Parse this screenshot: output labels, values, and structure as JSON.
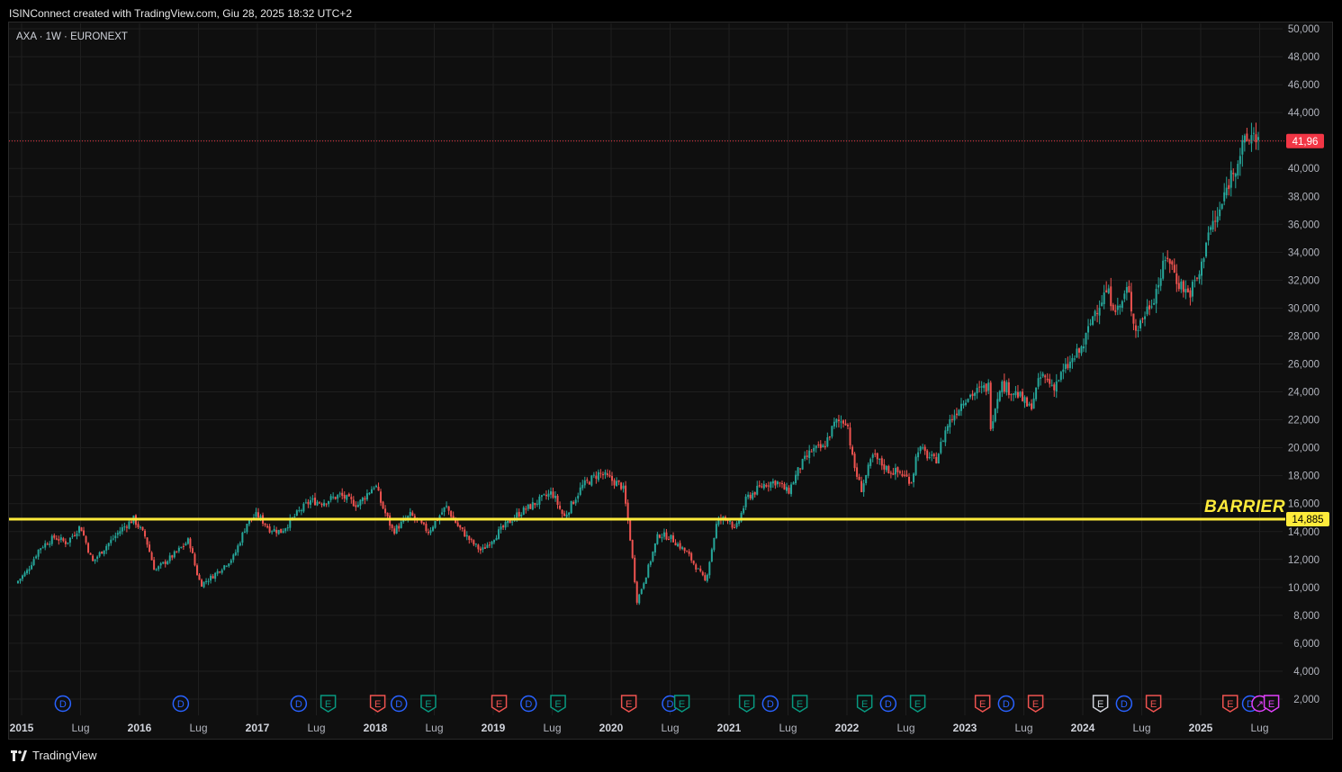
{
  "header": {
    "title": "ISINConnect created with TradingView.com, Giu 28, 2025 18:32 UTC+2"
  },
  "symbol": {
    "label": "AXA · 1W · EURONEXT"
  },
  "footer": {
    "brand": "TradingView"
  },
  "chart_data": {
    "type": "candlestick",
    "symbol": "AXA",
    "interval": "1W",
    "exchange": "EURONEXT",
    "ylim": [
      0,
      50
    ],
    "y_ticks": [
      "50,000",
      "48,000",
      "46,000",
      "44,000",
      "42,000",
      "40,000",
      "38,000",
      "36,000",
      "34,000",
      "32,000",
      "30,000",
      "28,000",
      "26,000",
      "24,000",
      "22,000",
      "20,000",
      "18,000",
      "16,000",
      "14,000",
      "12,000",
      "10,000",
      "8,000",
      "6,000",
      "4,000",
      "2,000"
    ],
    "y_tick_values": [
      50,
      48,
      46,
      44,
      42,
      40,
      38,
      36,
      34,
      32,
      30,
      28,
      26,
      24,
      22,
      20,
      18,
      16,
      14,
      12,
      10,
      8,
      6,
      4,
      2
    ],
    "x_ticks": [
      {
        "label": "2015",
        "t": 2015.0
      },
      {
        "label": "Lug",
        "t": 2015.5
      },
      {
        "label": "2016",
        "t": 2016.0
      },
      {
        "label": "Lug",
        "t": 2016.5
      },
      {
        "label": "2017",
        "t": 2017.0
      },
      {
        "label": "Lug",
        "t": 2017.5
      },
      {
        "label": "2018",
        "t": 2018.0
      },
      {
        "label": "Lug",
        "t": 2018.5
      },
      {
        "label": "2019",
        "t": 2019.0
      },
      {
        "label": "Lug",
        "t": 2019.5
      },
      {
        "label": "2020",
        "t": 2020.0
      },
      {
        "label": "Lug",
        "t": 2020.5
      },
      {
        "label": "2021",
        "t": 2021.0
      },
      {
        "label": "Lug",
        "t": 2021.5
      },
      {
        "label": "2022",
        "t": 2022.0
      },
      {
        "label": "Lug",
        "t": 2022.5
      },
      {
        "label": "2023",
        "t": 2023.0
      },
      {
        "label": "Lug",
        "t": 2023.5
      },
      {
        "label": "2024",
        "t": 2024.0
      },
      {
        "label": "Lug",
        "t": 2024.5
      },
      {
        "label": "2025",
        "t": 2025.0
      },
      {
        "label": "Lug",
        "t": 2025.5
      }
    ],
    "price_path": [
      [
        2014.95,
        10.3
      ],
      [
        2015.05,
        11.2
      ],
      [
        2015.15,
        12.8
      ],
      [
        2015.28,
        13.6
      ],
      [
        2015.38,
        13.2
      ],
      [
        2015.5,
        14.4
      ],
      [
        2015.6,
        11.8
      ],
      [
        2015.7,
        12.8
      ],
      [
        2015.85,
        14.2
      ],
      [
        2015.95,
        14.9
      ],
      [
        2016.05,
        13.6
      ],
      [
        2016.13,
        11.2
      ],
      [
        2016.3,
        12.4
      ],
      [
        2016.42,
        13.4
      ],
      [
        2016.48,
        11.2
      ],
      [
        2016.52,
        10.2
      ],
      [
        2016.62,
        10.8
      ],
      [
        2016.8,
        12.2
      ],
      [
        2016.92,
        14.8
      ],
      [
        2017.0,
        15.2
      ],
      [
        2017.1,
        14.2
      ],
      [
        2017.2,
        14.0
      ],
      [
        2017.35,
        15.4
      ],
      [
        2017.45,
        16.2
      ],
      [
        2017.55,
        16.1
      ],
      [
        2017.7,
        16.6
      ],
      [
        2017.85,
        15.9
      ],
      [
        2018.0,
        17.4
      ],
      [
        2018.05,
        16.0
      ],
      [
        2018.15,
        14.0
      ],
      [
        2018.3,
        15.2
      ],
      [
        2018.45,
        14.0
      ],
      [
        2018.6,
        15.8
      ],
      [
        2018.7,
        14.4
      ],
      [
        2018.82,
        13.2
      ],
      [
        2018.9,
        12.6
      ],
      [
        2019.05,
        14.0
      ],
      [
        2019.2,
        15.2
      ],
      [
        2019.35,
        16.0
      ],
      [
        2019.5,
        16.8
      ],
      [
        2019.6,
        15.0
      ],
      [
        2019.75,
        17.2
      ],
      [
        2019.9,
        18.2
      ],
      [
        2020.1,
        17.2
      ],
      [
        2020.15,
        14.4
      ],
      [
        2020.22,
        9.0
      ],
      [
        2020.3,
        11.0
      ],
      [
        2020.4,
        13.8
      ],
      [
        2020.5,
        13.6
      ],
      [
        2020.65,
        12.4
      ],
      [
        2020.8,
        10.4
      ],
      [
        2020.9,
        14.8
      ],
      [
        2021.0,
        15.0
      ],
      [
        2021.05,
        14.0
      ],
      [
        2021.15,
        16.4
      ],
      [
        2021.3,
        17.4
      ],
      [
        2021.4,
        17.6
      ],
      [
        2021.5,
        16.8
      ],
      [
        2021.6,
        18.6
      ],
      [
        2021.7,
        19.8
      ],
      [
        2021.8,
        20.0
      ],
      [
        2021.9,
        21.8
      ],
      [
        2022.0,
        22.0
      ],
      [
        2022.05,
        19.0
      ],
      [
        2022.12,
        17.0
      ],
      [
        2022.22,
        19.4
      ],
      [
        2022.35,
        18.4
      ],
      [
        2022.45,
        18.2
      ],
      [
        2022.55,
        17.6
      ],
      [
        2022.6,
        20.0
      ],
      [
        2022.75,
        19.0
      ],
      [
        2022.85,
        21.6
      ],
      [
        2023.0,
        23.6
      ],
      [
        2023.1,
        24.0
      ],
      [
        2023.2,
        24.4
      ],
      [
        2023.22,
        21.6
      ],
      [
        2023.3,
        24.6
      ],
      [
        2023.45,
        23.8
      ],
      [
        2023.55,
        22.8
      ],
      [
        2023.65,
        25.2
      ],
      [
        2023.75,
        24.4
      ],
      [
        2023.85,
        25.6
      ],
      [
        2024.0,
        27.2
      ],
      [
        2024.1,
        29.8
      ],
      [
        2024.2,
        31.2
      ],
      [
        2024.3,
        29.8
      ],
      [
        2024.38,
        31.4
      ],
      [
        2024.45,
        28.4
      ],
      [
        2024.5,
        29.2
      ],
      [
        2024.6,
        30.8
      ],
      [
        2024.72,
        33.8
      ],
      [
        2024.8,
        32.0
      ],
      [
        2024.9,
        31.0
      ],
      [
        2025.0,
        32.6
      ],
      [
        2025.05,
        35.2
      ],
      [
        2025.15,
        36.6
      ],
      [
        2025.25,
        39.4
      ],
      [
        2025.35,
        41.4
      ],
      [
        2025.45,
        42.6
      ],
      [
        2025.5,
        41.96
      ]
    ],
    "last_price": {
      "value": 41.96,
      "label": "41,96"
    },
    "barrier": {
      "value": 14.885,
      "label": "14,885",
      "text": "BARRIER"
    },
    "events": [
      {
        "t": 2015.35,
        "type": "D"
      },
      {
        "t": 2016.35,
        "type": "D"
      },
      {
        "t": 2017.35,
        "type": "D"
      },
      {
        "t": 2017.6,
        "type": "E"
      },
      {
        "t": 2018.02,
        "type": "E-red"
      },
      {
        "t": 2018.2,
        "type": "D"
      },
      {
        "t": 2018.45,
        "type": "E"
      },
      {
        "t": 2019.05,
        "type": "E-red"
      },
      {
        "t": 2019.3,
        "type": "D"
      },
      {
        "t": 2019.55,
        "type": "E"
      },
      {
        "t": 2020.15,
        "type": "E-red"
      },
      {
        "t": 2020.5,
        "type": "D"
      },
      {
        "t": 2020.6,
        "type": "E"
      },
      {
        "t": 2021.15,
        "type": "E"
      },
      {
        "t": 2021.35,
        "type": "D"
      },
      {
        "t": 2021.6,
        "type": "E"
      },
      {
        "t": 2022.15,
        "type": "E"
      },
      {
        "t": 2022.35,
        "type": "D"
      },
      {
        "t": 2022.6,
        "type": "E"
      },
      {
        "t": 2023.15,
        "type": "E-red"
      },
      {
        "t": 2023.35,
        "type": "D"
      },
      {
        "t": 2023.6,
        "type": "E-red"
      },
      {
        "t": 2024.15,
        "type": "E-white"
      },
      {
        "t": 2024.35,
        "type": "D"
      },
      {
        "t": 2024.6,
        "type": "E-red"
      },
      {
        "t": 2025.25,
        "type": "E-red"
      },
      {
        "t": 2025.42,
        "type": "D"
      },
      {
        "t": 2025.5,
        "type": "split"
      },
      {
        "t": 2025.6,
        "type": "E-magenta"
      }
    ],
    "colors": {
      "up": "#26a69a",
      "down": "#ef5350",
      "barrier": "#ffeb3b",
      "last_price": "#f23645",
      "grid": "#1f1f1f",
      "dividend": "#2962ff",
      "earnings": "#089981"
    }
  }
}
